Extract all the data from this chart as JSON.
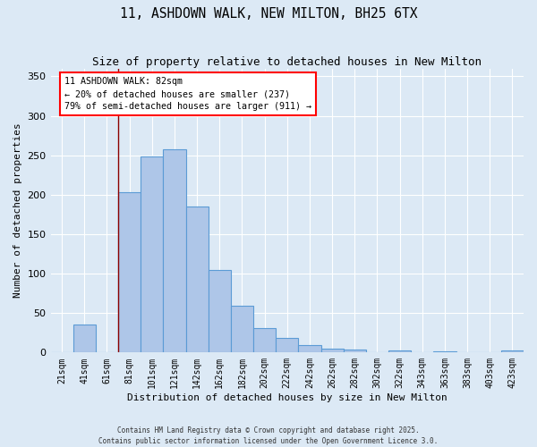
{
  "title": "11, ASHDOWN WALK, NEW MILTON, BH25 6TX",
  "subtitle": "Size of property relative to detached houses in New Milton",
  "xlabel": "Distribution of detached houses by size in New Milton",
  "ylabel": "Number of detached properties",
  "categories": [
    "21sqm",
    "41sqm",
    "61sqm",
    "81sqm",
    "101sqm",
    "121sqm",
    "142sqm",
    "162sqm",
    "182sqm",
    "202sqm",
    "222sqm",
    "242sqm",
    "262sqm",
    "282sqm",
    "302sqm",
    "322sqm",
    "343sqm",
    "363sqm",
    "383sqm",
    "403sqm",
    "423sqm"
  ],
  "values": [
    0,
    35,
    0,
    203,
    248,
    258,
    185,
    105,
    59,
    31,
    18,
    10,
    5,
    4,
    0,
    3,
    0,
    1,
    0,
    0,
    3
  ],
  "bar_color": "#aec6e8",
  "bar_edge_color": "#5b9bd5",
  "background_color": "#dce9f5",
  "ylim": [
    0,
    360
  ],
  "yticks": [
    0,
    50,
    100,
    150,
    200,
    250,
    300,
    350
  ],
  "red_line_index": 3,
  "annotation_line1": "11 ASHDOWN WALK: 82sqm",
  "annotation_line2": "← 20% of detached houses are smaller (237)",
  "annotation_line3": "79% of semi-detached houses are larger (911) →",
  "footer1": "Contains HM Land Registry data © Crown copyright and database right 2025.",
  "footer2": "Contains public sector information licensed under the Open Government Licence 3.0."
}
